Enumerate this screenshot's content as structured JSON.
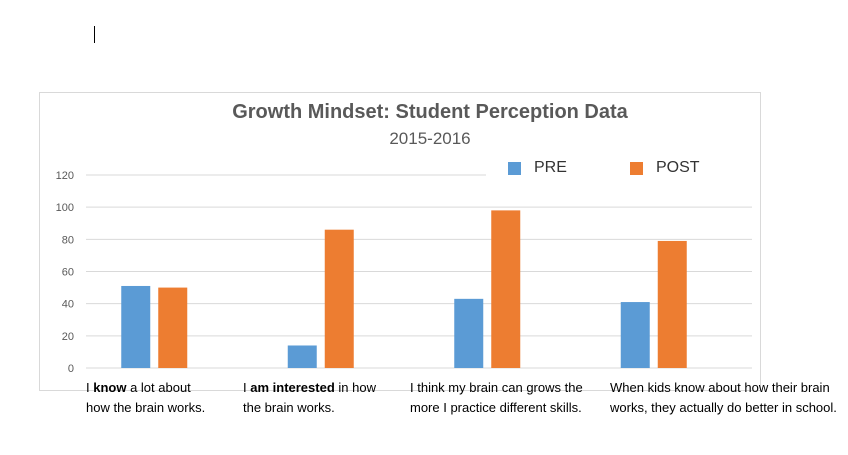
{
  "chart_data": {
    "type": "bar",
    "title": "Growth Mindset: Student Perception Data",
    "subtitle": "2015-2016",
    "xlabel": "",
    "ylabel": "",
    "ylim": [
      0,
      120
    ],
    "yticks": [
      0,
      20,
      40,
      60,
      80,
      100,
      120
    ],
    "grid": true,
    "legend_position": "top-right",
    "categories": [
      "I know a lot about how the brain works.",
      "I am interested in how the brain works.",
      "I think my brain can grows the more I practice different skills.",
      "When kids know about how their brain works, they actually do better in school."
    ],
    "category_lines": [
      [
        "I know a lot about",
        "how the brain works."
      ],
      [
        "I am interested in how",
        "the brain works."
      ],
      [
        "I think my brain can grows the",
        "more I practice different skills."
      ],
      [
        "When kids know about how their brain",
        "works, they actually do better in school."
      ]
    ],
    "category_bold_words": [
      "know",
      "am interested",
      "",
      ""
    ],
    "series": [
      {
        "name": "PRE",
        "color": "#5b9bd5",
        "values": [
          51,
          14,
          43,
          41
        ]
      },
      {
        "name": "POST",
        "color": "#ed7d31",
        "values": [
          50,
          86,
          98,
          79
        ]
      }
    ]
  }
}
